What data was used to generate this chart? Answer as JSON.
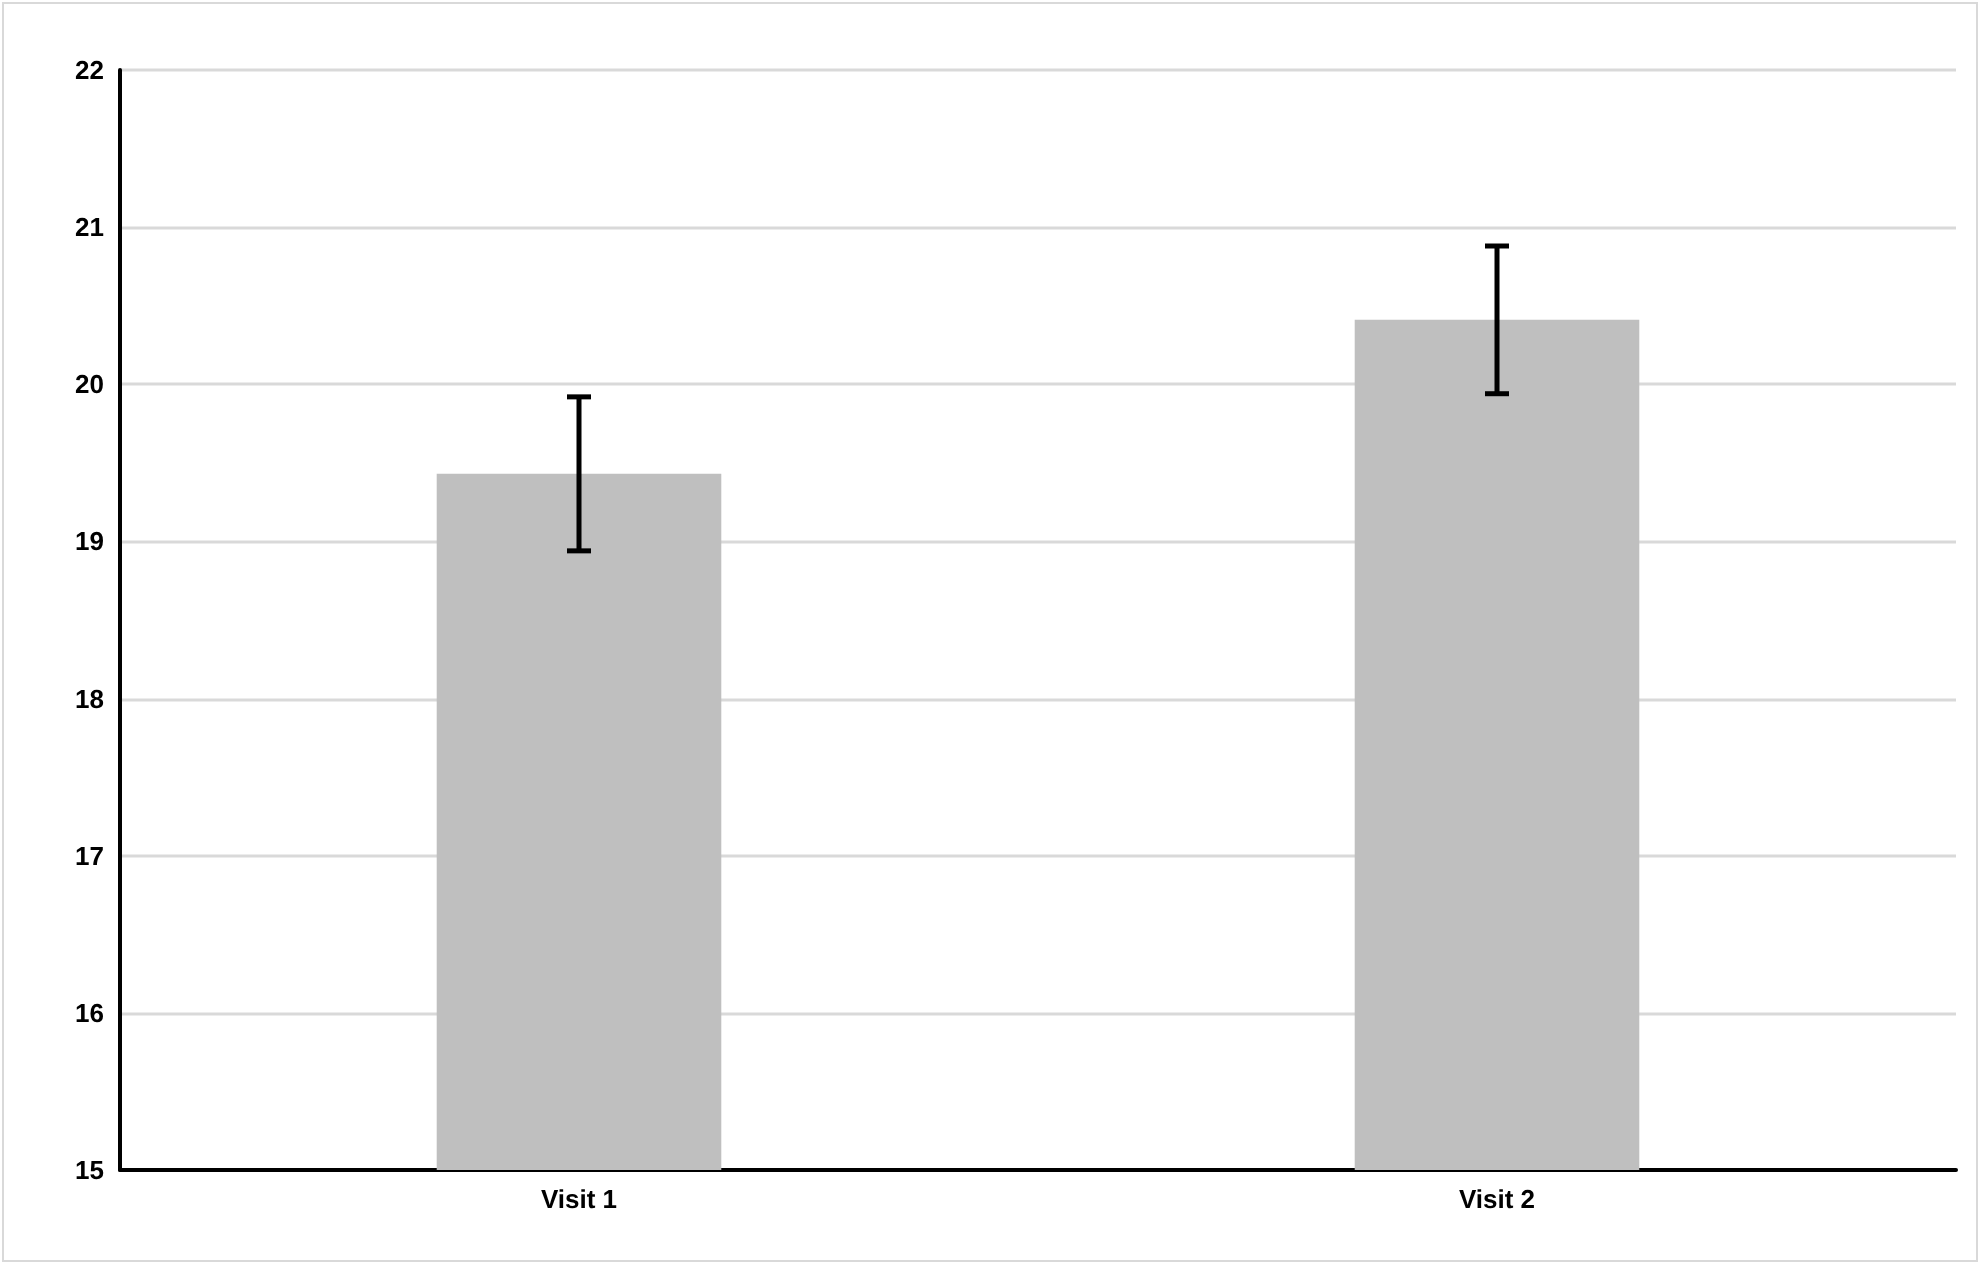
{
  "chart_data": {
    "type": "bar",
    "categories": [
      "Visit 1",
      "Visit 2"
    ],
    "values": [
      19.43,
      20.41
    ],
    "errors": [
      0.49,
      0.47
    ],
    "color": "#bfbfbf",
    "ylim": [
      15,
      22
    ],
    "yticks": [
      15,
      16,
      17,
      18,
      19,
      20,
      21,
      22
    ],
    "grid": "y"
  }
}
